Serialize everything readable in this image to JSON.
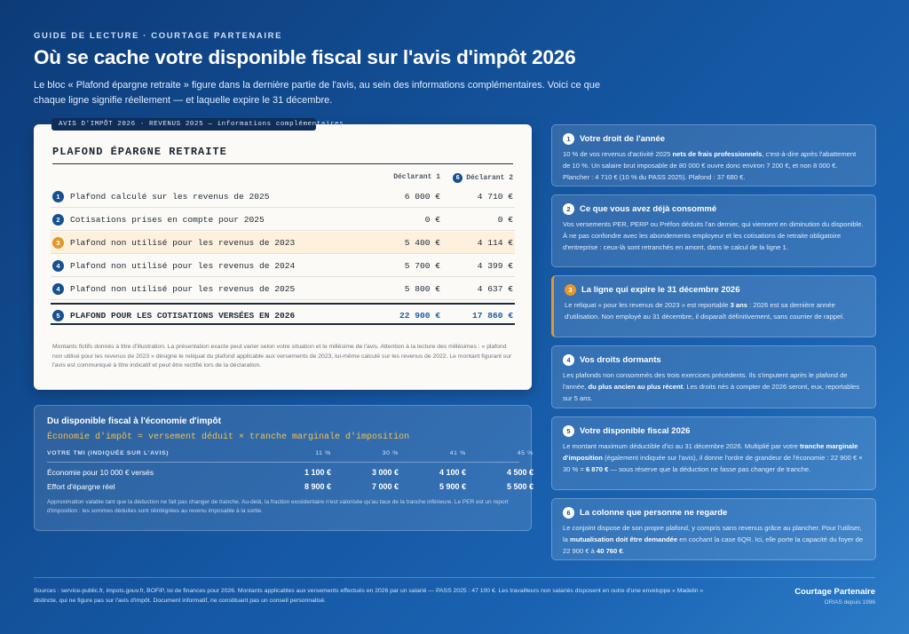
{
  "header": {
    "eyebrow": "GUIDE DE LECTURE · COURTAGE PARTENAIRE",
    "title": "Où se cache votre disponible fiscal sur l'avis d'impôt 2026",
    "intro": "Le bloc « Plafond épargne retraite » figure dans la dernière partie de l'avis, au sein des informations complémentaires. Voici ce que chaque ligne signifie réellement — et laquelle expire le 31 décembre."
  },
  "doc": {
    "tab": "AVIS D'IMPÔT 2026 · REVENUS 2025 — informations complémentaires",
    "heading": "PLAFOND ÉPARGNE RETRAITE",
    "col1": "Déclarant 1",
    "col2_badge": "6",
    "col2": "Déclarant 2",
    "rows": [
      {
        "n": "1",
        "label": "Plafond calculé sur les revenus de 2025",
        "d1": "6 000 €",
        "d2": "4 710 €"
      },
      {
        "n": "2",
        "label": "Cotisations prises en compte pour 2025",
        "d1": "0 €",
        "d2": "0 €"
      },
      {
        "n": "3",
        "label": "Plafond non utilisé pour les revenus de 2023",
        "d1": "5 400 €",
        "d2": "4 114 €"
      },
      {
        "n": "4",
        "label": "Plafond non utilisé pour les revenus de 2024",
        "d1": "5 700 €",
        "d2": "4 399 €"
      },
      {
        "n": "4",
        "label": "Plafond non utilisé pour les revenus de 2025",
        "d1": "5 800 €",
        "d2": "4 637 €"
      },
      {
        "n": "5",
        "label": "PLAFOND POUR LES COTISATIONS VERSÉES EN 2026",
        "d1": "22 900 €",
        "d2": "17 860 €"
      }
    ],
    "note": "Montants fictifs donnés à titre d'illustration. La présentation exacte peut varier selon votre situation et le millésime de l'avis. Attention à la lecture des millésimes : « plafond non utilisé pour les revenus de 2023 » désigne le reliquat du plafond applicable aux versements de 2023, lui-même calculé sur les revenus de 2022. Le montant figurant sur l'avis est communiqué à titre indicatif et peut être rectifié lors de la déclaration."
  },
  "eco": {
    "title": "Du disponible fiscal à l'économie d'impôt",
    "formula": "Économie d'impôt = versement déduit × tranche marginale d'imposition",
    "head": "VOTRE TMI (INDIQUÉE SUR L'AVIS)",
    "tmi": [
      "11 %",
      "30 %",
      "41 %",
      "45 %"
    ],
    "rows": [
      {
        "label": "Économie pour 10 000 € versés",
        "values": [
          "1 100 €",
          "3 000 €",
          "4 100 €",
          "4 500 €"
        ]
      },
      {
        "label": "Effort d'épargne réel",
        "values": [
          "8 900 €",
          "7 000 €",
          "5 900 €",
          "5 500 €"
        ]
      }
    ],
    "note": "Approximation valable tant que la déduction ne fait pas changer de tranche. Au-delà, la fraction excédentaire n'est valorisée qu'au taux de la tranche inférieure. Le PER est un report d'imposition : les sommes déduites sont réintégrées au revenu imposable à la sortie."
  },
  "cards": [
    {
      "n": "1",
      "title": "Votre droit de l'année",
      "html": "10 % de vos revenus d'activité 2025 <b>nets de frais professionnels</b>, c'est-à-dire après l'abattement de 10 %. Un salaire brut imposable de 80 000 € ouvre donc environ 7 200 €, et non 8 000 €. Plancher : 4 710 € (10 % du PASS 2025). Plafond : 37 680 €."
    },
    {
      "n": "2",
      "title": "Ce que vous avez déjà consommé",
      "html": "Vos versements PER, PERP ou Préfon déduits l'an dernier, qui viennent en diminution du disponible. À ne pas confondre avec les abondements employeur et les cotisations de retraite obligatoire d'entreprise : ceux-là sont retranchés en amont, dans le calcul de la ligne 1."
    },
    {
      "n": "3",
      "title": "La ligne qui expire le 31 décembre 2026",
      "html": "Le reliquat « pour les revenus de 2023 » est reportable <b>3 ans</b> : 2026 est sa dernière année d'utilisation. Non employé au 31 décembre, il disparaît définitivement, sans courrier de rappel."
    },
    {
      "n": "4",
      "title": "Vos droits dormants",
      "html": "Les plafonds non consommés des trois exercices précédents. Ils s'imputent après le plafond de l'année, <b>du plus ancien au plus récent</b>. Les droits nés à compter de 2026 seront, eux, reportables sur 5 ans."
    },
    {
      "n": "5",
      "title": "Votre disponible fiscal 2026",
      "html": "Le montant maximum déductible d'ici au 31 décembre 2026. Multiplié par votre <b>tranche marginale d'imposition</b> (également indiquée sur l'avis), il donne l'ordre de grandeur de l'économie : 22 900 € × 30 % = <b>6 870 €</b> — sous réserve que la déduction ne fasse pas changer de tranche."
    },
    {
      "n": "6",
      "title": "La colonne que personne ne regarde",
      "html": "Le conjoint dispose de son propre plafond, y compris sans revenus grâce au plancher. Pour l'utiliser, la <b>mutualisation doit être demandée</b> en cochant la case 6QR. Ici, elle porte la capacité du foyer de 22 900 € à <b>40 760 €</b>."
    }
  ],
  "footer": {
    "sources": "Sources : service-public.fr, impots.gouv.fr, BOFiP, loi de finances pour 2026. Montants applicables aux versements effectués en 2026 par un salarié — PASS 2025 : 47 100 €. Les travailleurs non salariés disposent en outre d'une enveloppe « Madelin » distincte, qui ne figure pas sur l'avis d'impôt. Document informatif, ne constituant pas un conseil personnalisé.",
    "brand": "Courtage Partenaire",
    "brand_sub": "ORIAS depuis 1996"
  },
  "colors": {
    "accent": "#1a5ca8",
    "warning": "#e3982b",
    "badge": "#17508f"
  }
}
